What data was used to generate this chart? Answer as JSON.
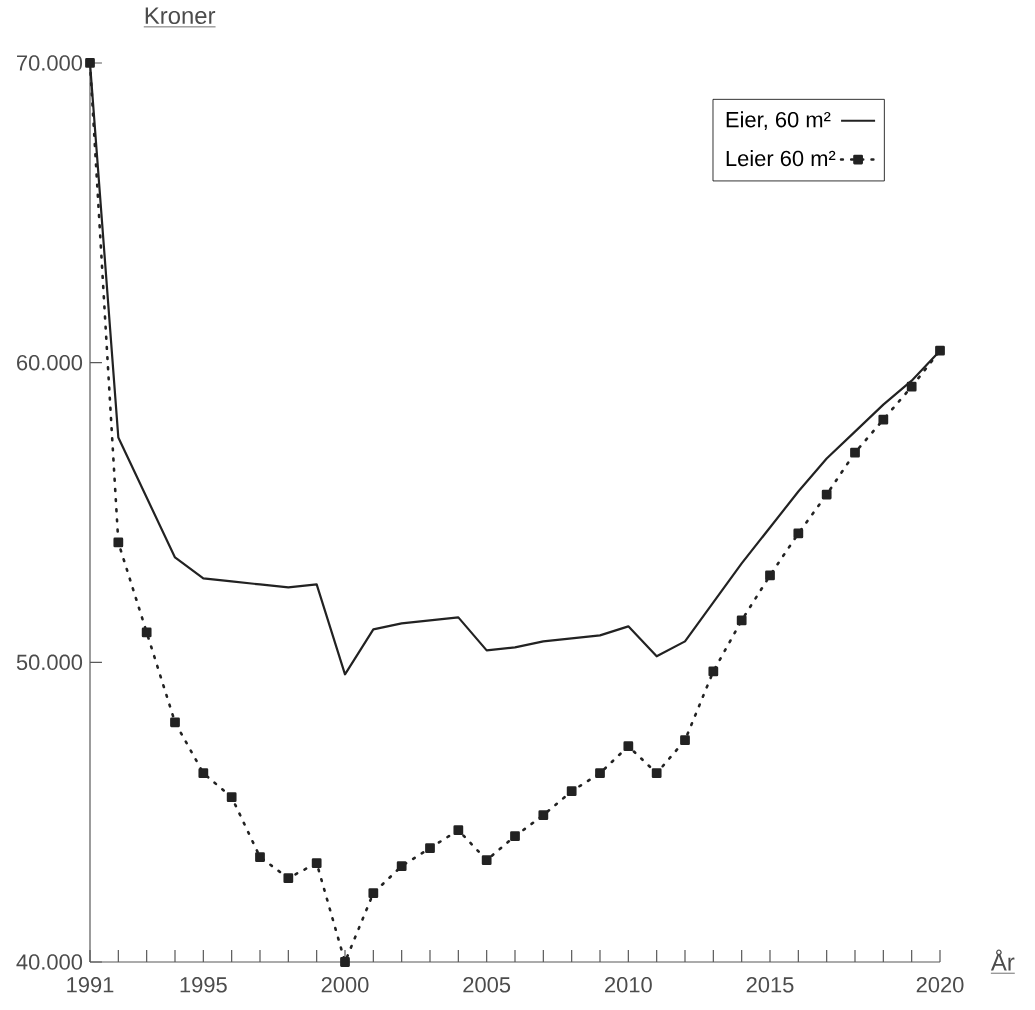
{
  "chart_data": {
    "type": "line",
    "xlabel": "År",
    "ylabel": "Kroner",
    "categories": [
      "1991",
      null,
      null,
      null,
      "1995",
      null,
      null,
      null,
      null,
      "2000",
      null,
      null,
      null,
      null,
      "2005",
      null,
      null,
      null,
      null,
      "2010",
      null,
      null,
      null,
      null,
      "2015",
      null,
      null,
      null,
      null,
      null,
      "2020"
    ],
    "ylim": [
      40000,
      70000
    ],
    "yticks": [
      {
        "value": 40000,
        "label": "40.000"
      },
      {
        "value": 50000,
        "label": "50.000"
      },
      {
        "value": 60000,
        "label": "60.000"
      },
      {
        "value": 70000,
        "label": "70.000"
      }
    ],
    "series": [
      {
        "name": "Eier, 60 m²",
        "color": "#222222",
        "marker": "none",
        "line_style": "solid",
        "values": [
          70000,
          57500,
          55500,
          53500,
          52800,
          52700,
          52600,
          52500,
          52600,
          49600,
          51100,
          51300,
          51400,
          51500,
          50400,
          50500,
          50700,
          50800,
          50900,
          51200,
          50200,
          50700,
          52000,
          53300,
          54500,
          55700,
          56800,
          57700,
          58600,
          59400,
          60400
        ]
      },
      {
        "name": "Leier 60 m²",
        "color": "#222222",
        "marker": "square",
        "line_style": "dotted",
        "values": [
          70000,
          54000,
          51000,
          48000,
          46300,
          45500,
          43500,
          42800,
          43300,
          40000,
          42300,
          43200,
          43800,
          44400,
          43400,
          44200,
          44900,
          45700,
          46300,
          47200,
          46300,
          47400,
          49700,
          51400,
          52900,
          54300,
          55600,
          57000,
          58100,
          59200,
          60400
        ]
      }
    ],
    "legend": "top right",
    "grid": false
  }
}
